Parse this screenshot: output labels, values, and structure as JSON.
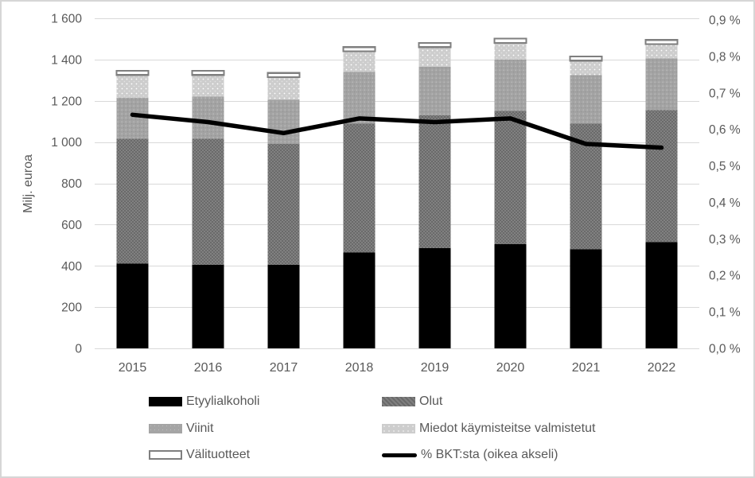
{
  "window": {
    "background_color": "#ffffff",
    "border_color": "#d6d6d6"
  },
  "chart_data": {
    "type": "combo-stacked-bar-line",
    "title": "",
    "categories": [
      "2015",
      "2016",
      "2017",
      "2018",
      "2019",
      "2020",
      "2021",
      "2022"
    ],
    "series": [
      {
        "name": "Etyylialkoholi",
        "values": [
          410,
          405,
          405,
          465,
          485,
          505,
          480,
          515
        ],
        "color": "#000000",
        "style": "solid-black"
      },
      {
        "name": "Olut",
        "values": [
          605,
          610,
          585,
          625,
          645,
          645,
          610,
          640
        ],
        "color": "#757575",
        "style": "dark-gray-weave"
      },
      {
        "name": "Viinit",
        "values": [
          200,
          205,
          215,
          250,
          235,
          250,
          235,
          250
        ],
        "color": "#a5a5a5",
        "style": "medium-gray-speckle"
      },
      {
        "name": "Miedot käymisteitse valmistetut",
        "values": [
          110,
          105,
          110,
          100,
          95,
          80,
          70,
          70
        ],
        "color": "#cdcdcd",
        "style": "light-gray-dots"
      },
      {
        "name": "Välituotteet",
        "values": [
          20,
          20,
          20,
          20,
          20,
          22,
          20,
          20
        ],
        "color": "#ffffff",
        "border_color": "#7f7f7f",
        "style": "white-outlined"
      }
    ],
    "totals": [
      1345,
      1345,
      1335,
      1460,
      1480,
      1502,
      1415,
      1495
    ],
    "line_series": {
      "name": "% BKT:sta (oikea akseli)",
      "values": [
        0.64,
        0.62,
        0.59,
        0.63,
        0.62,
        0.63,
        0.56,
        0.55
      ],
      "color": "#000000",
      "axis": "right"
    },
    "left_axis": {
      "title": "Milj. euroa",
      "min": 0,
      "max": 1600,
      "step": 200,
      "tick_labels": [
        "1 600",
        "1 400",
        "1 200",
        "1 000",
        "800",
        "600",
        "400",
        "200",
        "0"
      ]
    },
    "right_axis": {
      "min": 0.0,
      "max": 0.9,
      "step": 0.1,
      "tick_labels": [
        "0,9 %",
        "0,8 %",
        "0,7 %",
        "0,6 %",
        "0,5 %",
        "0,4 %",
        "0,3 %",
        "0,2 %",
        "0,1 %",
        "0,0 %"
      ]
    },
    "grid": {
      "on": true,
      "color": "#d9d9d9"
    },
    "legend_position": "bottom",
    "text_color": "#595959"
  }
}
